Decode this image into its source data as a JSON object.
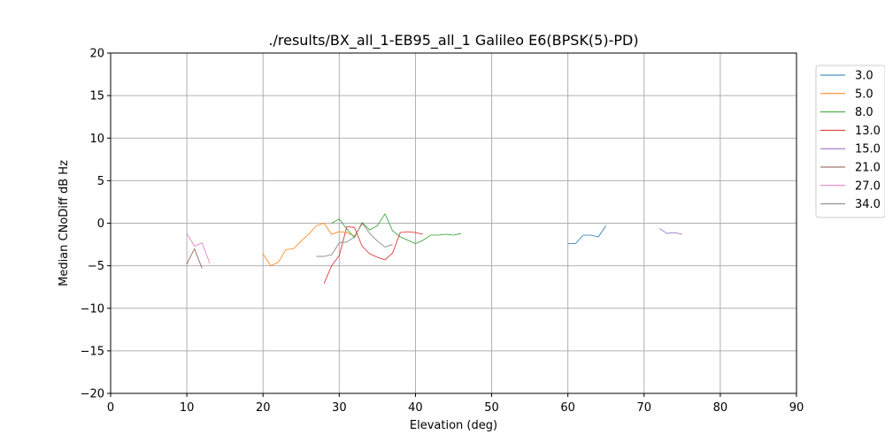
{
  "chart_data": {
    "type": "line",
    "title": "./results/BX_all_1-EB95_all_1 Galileo E6(BPSK(5)-PD)",
    "xlabel": "Elevation (deg)",
    "ylabel": "Median CNoDiff dB Hz",
    "xlim": [
      0,
      90
    ],
    "ylim": [
      -20,
      20
    ],
    "xticks": [
      0,
      10,
      20,
      30,
      40,
      50,
      60,
      70,
      80,
      90
    ],
    "yticks": [
      20,
      15,
      10,
      5,
      0,
      -5,
      -10,
      -15,
      -20
    ],
    "xtick_labels": [
      "0",
      "10",
      "20",
      "30",
      "40",
      "50",
      "60",
      "70",
      "80",
      "90"
    ],
    "ytick_labels": [
      "20",
      "15",
      "10",
      "5",
      "0",
      "−5",
      "−10",
      "−15",
      "−20"
    ],
    "grid": true,
    "legend_position": "outside-right-top",
    "series": [
      {
        "name": "3.0",
        "color": "#1f77b4",
        "points": [
          [
            60,
            -2.4
          ],
          [
            61,
            -2.4
          ],
          [
            62,
            -1.4
          ],
          [
            63,
            -1.4
          ],
          [
            64,
            -1.6
          ],
          [
            65,
            -0.3
          ]
        ]
      },
      {
        "name": "5.0",
        "color": "#ff7f0e",
        "points": [
          [
            20,
            -3.6
          ],
          [
            21,
            -5.0
          ],
          [
            22,
            -4.6
          ],
          [
            23,
            -3.1
          ],
          [
            24,
            -3.0
          ],
          [
            25,
            -2.1
          ],
          [
            26,
            -1.3
          ],
          [
            27,
            -0.3
          ],
          [
            28,
            0.0
          ],
          [
            29,
            -1.3
          ],
          [
            30,
            -1.0
          ],
          [
            31,
            -1.1
          ],
          [
            32,
            -1.5
          ],
          [
            33,
            -0.1
          ]
        ]
      },
      {
        "name": "8.0",
        "color": "#2ca02c",
        "points": [
          [
            29,
            0.0
          ],
          [
            30,
            0.5
          ],
          [
            31,
            -0.7
          ],
          [
            32,
            -1.7
          ],
          [
            33,
            0.1
          ],
          [
            34,
            -0.8
          ],
          [
            35,
            -0.3
          ],
          [
            36,
            1.1
          ],
          [
            37,
            -0.9
          ],
          [
            38,
            -1.6
          ],
          [
            39,
            -2.0
          ],
          [
            40,
            -2.4
          ],
          [
            41,
            -2.0
          ],
          [
            42,
            -1.4
          ],
          [
            43,
            -1.4
          ],
          [
            44,
            -1.3
          ],
          [
            45,
            -1.4
          ],
          [
            46,
            -1.2
          ]
        ]
      },
      {
        "name": "13.0",
        "color": "#d62728",
        "points": [
          [
            28,
            -7.1
          ],
          [
            29,
            -5.0
          ],
          [
            30,
            -3.8
          ],
          [
            31,
            -0.4
          ],
          [
            32,
            -0.5
          ],
          [
            33,
            -2.7
          ],
          [
            34,
            -3.6
          ],
          [
            35,
            -4.0
          ],
          [
            36,
            -4.3
          ],
          [
            37,
            -3.5
          ],
          [
            38,
            -1.1
          ],
          [
            39,
            -1.0
          ],
          [
            40,
            -1.1
          ],
          [
            41,
            -1.3
          ]
        ]
      },
      {
        "name": "15.0",
        "color": "#9467bd",
        "points": [
          [
            72,
            -0.6
          ],
          [
            73,
            -1.2
          ],
          [
            74,
            -1.1
          ],
          [
            75,
            -1.3
          ]
        ]
      },
      {
        "name": "21.0",
        "color": "#8c564b",
        "points": [
          [
            10,
            -4.8
          ],
          [
            11,
            -3.0
          ],
          [
            12,
            -5.3
          ]
        ]
      },
      {
        "name": "27.0",
        "color": "#e377c2",
        "points": [
          [
            10,
            -1.2
          ],
          [
            11,
            -2.7
          ],
          [
            12,
            -2.3
          ],
          [
            13,
            -4.7
          ]
        ]
      },
      {
        "name": "34.0",
        "color": "#7f7f7f",
        "points": [
          [
            27,
            -3.9
          ],
          [
            28,
            -3.9
          ],
          [
            29,
            -3.7
          ],
          [
            30,
            -2.3
          ],
          [
            31,
            -2.2
          ],
          [
            32,
            -1.6
          ],
          [
            33,
            0.0
          ],
          [
            34,
            -1.2
          ],
          [
            35,
            -2.1
          ],
          [
            36,
            -2.8
          ],
          [
            37,
            -2.5
          ]
        ]
      }
    ]
  }
}
